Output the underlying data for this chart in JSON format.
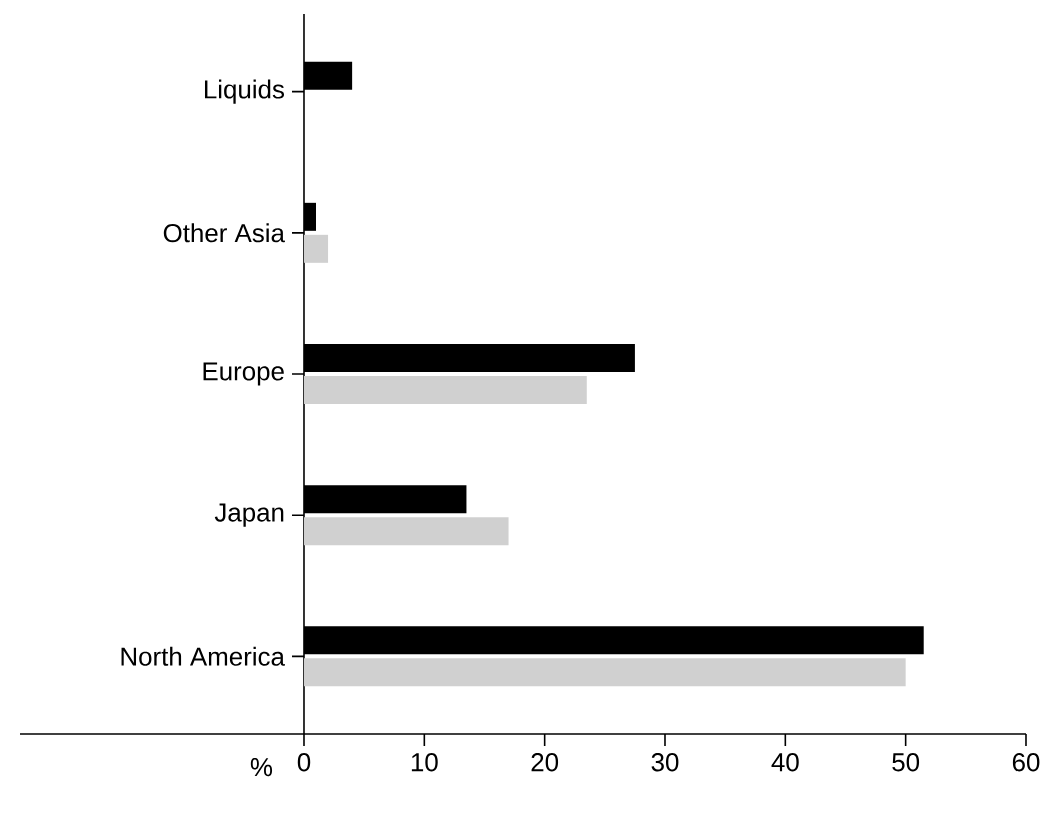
{
  "chart_data": {
    "type": "bar",
    "orientation": "horizontal",
    "xlabel": "%",
    "categories": [
      "Liquids",
      "Other Asia",
      "Europe",
      "Japan",
      "North America"
    ],
    "series": [
      {
        "color": "#000000",
        "values": [
          4,
          1,
          27.5,
          13.5,
          51.5
        ]
      },
      {
        "color": "#d0d0d0",
        "values": [
          null,
          2,
          23.5,
          17,
          50
        ]
      }
    ],
    "xlim": [
      0,
      60
    ],
    "xticks": [
      0,
      10,
      20,
      30,
      40,
      50,
      60
    ]
  }
}
